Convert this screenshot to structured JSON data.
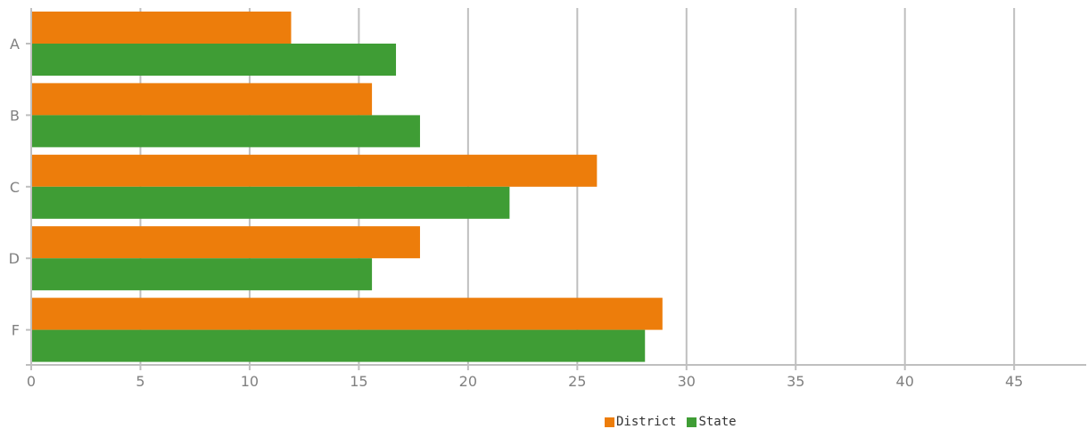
{
  "chart_data": {
    "type": "bar",
    "orientation": "horizontal",
    "categories": [
      "A",
      "B",
      "C",
      "D",
      "F"
    ],
    "series": [
      {
        "name": "District",
        "color": "#ed7d0b",
        "values": [
          11.9,
          15.6,
          25.9,
          17.8,
          28.9
        ]
      },
      {
        "name": "State",
        "color": "#3f9d35",
        "values": [
          16.7,
          17.8,
          21.9,
          15.6,
          28.1
        ]
      }
    ],
    "xlim": [
      0,
      48.3
    ],
    "xticks": [
      0,
      5,
      10,
      15,
      20,
      25,
      30,
      35,
      40,
      45
    ],
    "grid": true,
    "legend": "bottom-center",
    "title": "",
    "xlabel": "",
    "ylabel": ""
  }
}
